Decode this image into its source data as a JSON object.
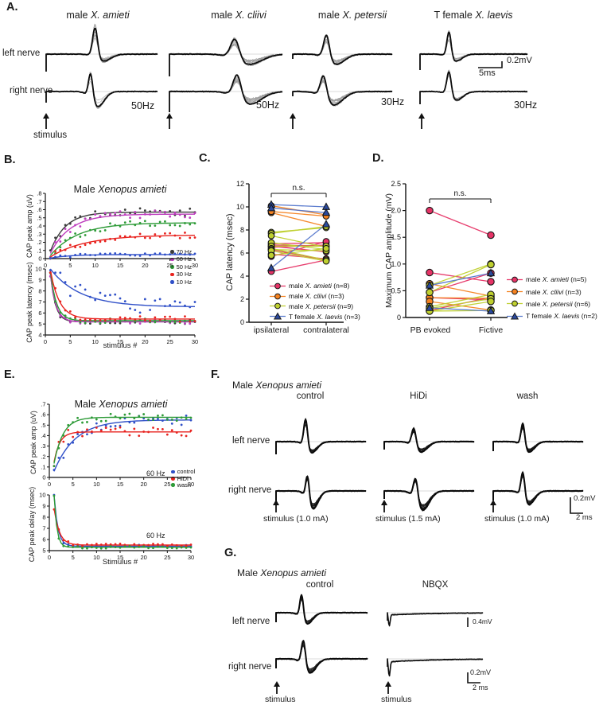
{
  "panel_labels": {
    "A": "A.",
    "B": "B.",
    "C": "C.",
    "D": "D.",
    "E": "E.",
    "F": "F.",
    "G": "G."
  },
  "panelA": {
    "columns": [
      {
        "prefix": "male ",
        "species": "X. amieti",
        "freq": "50Hz"
      },
      {
        "prefix": "male ",
        "species": "X. cliivi",
        "freq": "50Hz"
      },
      {
        "prefix": "male ",
        "species": "X. petersii",
        "freq": "30Hz"
      },
      {
        "prefix": "T female ",
        "species": "X. laevis",
        "freq": "30Hz"
      }
    ],
    "row_labels": [
      "left nerve",
      "right nerve"
    ],
    "stimulus_label": "stimulus",
    "scale_voltage": "0.2mV",
    "scale_time": "5ms"
  },
  "panelB": {
    "title_prefix": "Male ",
    "title_species": "Xenopus amieti"
  },
  "panelE": {
    "title_prefix": "Male ",
    "title_species": "Xenopus amieti"
  },
  "panelF": {
    "title_prefix": "Male ",
    "title_species": "Xenopus amieti",
    "col_titles": [
      "control",
      "HiDi",
      "wash"
    ],
    "row_labels": [
      "left nerve",
      "right nerve"
    ],
    "stim_labels": [
      "stimulus (1.0 mA)",
      "stimulus (1.5 mA)",
      "stimulus (1.0 mA)"
    ],
    "scale_voltage": "0.2mV",
    "scale_time": "2 ms"
  },
  "panelG": {
    "title_prefix": "Male ",
    "title_species": "Xenopus amieti",
    "col_titles": [
      "control",
      "NBQX"
    ],
    "row_labels": [
      "left nerve",
      "right nerve"
    ],
    "stim_labels": [
      "stimulus",
      "stimulus"
    ],
    "scale_top": "0.4mV",
    "scale_voltage": "0.2mV",
    "scale_time": "2 ms"
  },
  "chart_data": [
    {
      "id": "B_amp",
      "type": "scatter",
      "model": "growth",
      "title": "Male Xenopus amieti",
      "xlabel": "",
      "ylabel": "CAP peak amp (uV)",
      "xlim": [
        0,
        30
      ],
      "ylim": [
        0,
        0.8
      ],
      "xticks": [
        0,
        5,
        10,
        15,
        20,
        25,
        30
      ],
      "yticks": [
        0,
        0.1,
        0.2,
        0.3,
        0.4,
        0.5,
        0.6,
        0.7,
        0.8
      ],
      "ytick_labels": [
        "0",
        ".1",
        ".2",
        ".3",
        ".4",
        ".5",
        ".6",
        ".7",
        ".8"
      ],
      "legend_position": "right",
      "series": [
        {
          "name": "70 Hz",
          "color": "#3b3b3b",
          "plateau": 0.57,
          "tau": 3.0,
          "noise": 0.05
        },
        {
          "name": "60 Hz",
          "color": "#bf3fbf",
          "plateau": 0.545,
          "tau": 4.0,
          "noise": 0.05
        },
        {
          "name": "50 Hz",
          "color": "#2e9b38",
          "plateau": 0.44,
          "tau": 5.5,
          "noise": 0.04
        },
        {
          "name": "30 Hz",
          "color": "#e8231f",
          "plateau": 0.29,
          "tau": 7.0,
          "noise": 0.035
        },
        {
          "name": "10 Hz",
          "color": "#3050c8",
          "plateau": 0.05,
          "tau": 4.0,
          "noise": 0.018
        }
      ]
    },
    {
      "id": "B_lat",
      "type": "scatter",
      "model": "decay",
      "xlabel": "stimulus #",
      "ylabel": "CAP peak latency (msec)",
      "xlim": [
        0,
        30
      ],
      "ylim": [
        4,
        10
      ],
      "xticks": [
        0,
        5,
        10,
        15,
        20,
        25,
        30
      ],
      "yticks": [
        4,
        5,
        6,
        7,
        8,
        9,
        10
      ],
      "series": [
        {
          "name": "70 Hz",
          "color": "#3b3b3b",
          "start": 9.6,
          "base": 5.2,
          "tau": 1.0,
          "noise": 0.2
        },
        {
          "name": "60 Hz",
          "color": "#bf3fbf",
          "start": 9.5,
          "base": 5.2,
          "tau": 1.1,
          "noise": 0.2
        },
        {
          "name": "50 Hz",
          "color": "#2e9b38",
          "start": 9.8,
          "base": 5.3,
          "tau": 1.2,
          "noise": 0.2
        },
        {
          "name": "30 Hz",
          "color": "#e8231f",
          "start": 9.9,
          "base": 5.45,
          "tau": 1.8,
          "noise": 0.25
        },
        {
          "name": "10 Hz",
          "color": "#3050c8",
          "start": 10.0,
          "base": 6.55,
          "tau": 6.0,
          "noise": 0.8
        }
      ]
    },
    {
      "id": "C",
      "type": "paired_scatter",
      "ylabel": "CAP latency (msec)",
      "ylim": [
        0,
        12
      ],
      "yticks": [
        0,
        2,
        4,
        6,
        8,
        10,
        12
      ],
      "categories": [
        "ipsilateral",
        "contralateral"
      ],
      "annotation": "n.s.",
      "groups": [
        {
          "name": "male X. amieti (n=8)",
          "name_parts": [
            {
              "t": "male "
            },
            {
              "t": "X. amieti",
              "i": true
            },
            {
              "t": " (n=8)"
            }
          ],
          "color": "#e63366",
          "marker": "circle",
          "pairs": [
            [
              6.8,
              6.9
            ],
            [
              6.7,
              6.6
            ],
            [
              6.6,
              6.1
            ],
            [
              6.5,
              6.7
            ],
            [
              6.3,
              5.4
            ],
            [
              5.9,
              5.5
            ],
            [
              5.7,
              7.0
            ],
            [
              4.4,
              5.4
            ]
          ]
        },
        {
          "name": "male X. cliivi (n=3)",
          "name_parts": [
            {
              "t": "male "
            },
            {
              "t": "X. cliivi",
              "i": true
            },
            {
              "t": " (n=3)"
            }
          ],
          "color": "#f58220",
          "marker": "circle",
          "pairs": [
            [
              10.1,
              9.3
            ],
            [
              9.5,
              8.3
            ],
            [
              9.6,
              9.2
            ]
          ]
        },
        {
          "name": "male X. petersii (n=9)",
          "name_parts": [
            {
              "t": "male "
            },
            {
              "t": "X. petersii",
              "i": true
            },
            {
              "t": " (n=9)"
            }
          ],
          "color": "#bfd02f",
          "marker": "circle",
          "pairs": [
            [
              7.8,
              8.2
            ],
            [
              7.7,
              8.3
            ],
            [
              7.5,
              6.5
            ],
            [
              6.9,
              6.3
            ],
            [
              6.6,
              6.6
            ],
            [
              6.4,
              5.4
            ],
            [
              6.3,
              6.2
            ],
            [
              6.2,
              5.3
            ],
            [
              5.8,
              6.4
            ]
          ]
        },
        {
          "name": "T female X. laevis (n=3)",
          "name_parts": [
            {
              "t": "T female "
            },
            {
              "t": "X. laevis",
              "i": true
            },
            {
              "t": " (n=3)"
            }
          ],
          "color": "#2b4a9e",
          "line_color": "#5577cc",
          "marker": "triangle",
          "pairs": [
            [
              10.2,
              10.0
            ],
            [
              9.9,
              9.5
            ],
            [
              4.7,
              8.5
            ]
          ]
        }
      ]
    },
    {
      "id": "D",
      "type": "paired_scatter",
      "ylabel": "Maximum CAP amplitude (mV)",
      "ylim": [
        0,
        2.5
      ],
      "yticks": [
        0,
        0.5,
        1.0,
        1.5,
        2.0,
        2.5
      ],
      "ytick_labels": [
        "0",
        "0.5",
        "1.0",
        "1.5",
        "2.0",
        "2.5"
      ],
      "categories": [
        "PB evoked",
        "Fictive"
      ],
      "annotation": "n.s.",
      "groups": [
        {
          "name": "male X. amieti (n=5)",
          "name_parts": [
            {
              "t": "male "
            },
            {
              "t": "X. amieti",
              "i": true
            },
            {
              "t": " (n=5)"
            }
          ],
          "color": "#e63366",
          "marker": "circle",
          "pairs": [
            [
              2.0,
              1.54
            ],
            [
              0.84,
              0.67
            ],
            [
              0.47,
              0.83
            ],
            [
              0.37,
              0.33
            ],
            [
              0.13,
              0.38
            ]
          ]
        },
        {
          "name": "male X. cliivi (n=3)",
          "name_parts": [
            {
              "t": "male "
            },
            {
              "t": "X. cliivi",
              "i": true
            },
            {
              "t": " (n=3)"
            }
          ],
          "color": "#f58220",
          "marker": "circle",
          "pairs": [
            [
              0.63,
              0.4
            ],
            [
              0.37,
              0.36
            ],
            [
              0.3,
              0.14
            ]
          ]
        },
        {
          "name": "male X. petersii (n=6)",
          "name_parts": [
            {
              "t": "male "
            },
            {
              "t": "X. petersii",
              "i": true
            },
            {
              "t": " (n=6)"
            }
          ],
          "color": "#bfd02f",
          "marker": "circle",
          "pairs": [
            [
              0.6,
              1.0
            ],
            [
              0.47,
              0.99
            ],
            [
              0.2,
              0.43
            ],
            [
              0.17,
              0.35
            ],
            [
              0.12,
              0.3
            ],
            [
              0.12,
              0.13
            ]
          ]
        },
        {
          "name": "T female X. laevis (n=2)",
          "name_parts": [
            {
              "t": "T female "
            },
            {
              "t": "X. laevis",
              "i": true
            },
            {
              "t": " (n=2)"
            }
          ],
          "color": "#2b4a9e",
          "line_color": "#5577cc",
          "marker": "triangle",
          "pairs": [
            [
              0.6,
              0.83
            ],
            [
              0.18,
              0.12
            ]
          ]
        }
      ]
    },
    {
      "id": "E_amp",
      "type": "scatter",
      "model": "growth",
      "title": "Male Xenopus amieti",
      "xlabel": "",
      "ylabel": "CAP peak amp (uV)",
      "annotation": "60 Hz",
      "xlim": [
        0,
        30
      ],
      "ylim": [
        0,
        0.7
      ],
      "xticks": [
        0,
        5,
        10,
        15,
        20,
        25,
        30
      ],
      "yticks": [
        0,
        0.1,
        0.2,
        0.3,
        0.4,
        0.5,
        0.6,
        0.7
      ],
      "ytick_labels": [
        "0",
        ".1",
        ".2",
        ".3",
        ".4",
        ".5",
        ".6",
        ".7"
      ],
      "series": [
        {
          "name": "control",
          "color": "#3050c8",
          "plateau": 0.55,
          "tau": 4.5,
          "noise": 0.05
        },
        {
          "name": "HiDi",
          "color": "#e8231f",
          "plateau": 0.435,
          "tau": 1.2,
          "noise": 0.045
        },
        {
          "name": "wash",
          "color": "#2e9b38",
          "plateau": 0.575,
          "tau": 1.9,
          "noise": 0.035
        }
      ]
    },
    {
      "id": "E_delay",
      "type": "scatter",
      "model": "decay",
      "xlabel": "Stimulus #",
      "ylabel": "CAP peak delay (msec)",
      "annotation": "60 Hz",
      "xlim": [
        0,
        30
      ],
      "ylim": [
        5,
        10
      ],
      "xticks": [
        0,
        5,
        10,
        15,
        20,
        25,
        30
      ],
      "yticks": [
        5,
        6,
        7,
        8,
        9,
        10
      ],
      "series": [
        {
          "name": "control",
          "color": "#3050c8",
          "start": 10.0,
          "base": 5.4,
          "tau": 0.8,
          "noise": 0.12
        },
        {
          "name": "HiDi",
          "color": "#e8231f",
          "start": 8.8,
          "base": 5.5,
          "tau": 1.1,
          "noise": 0.12
        },
        {
          "name": "wash",
          "color": "#2e9b38",
          "start": 10.0,
          "base": 5.3,
          "tau": 0.6,
          "noise": 0.1
        }
      ]
    }
  ]
}
